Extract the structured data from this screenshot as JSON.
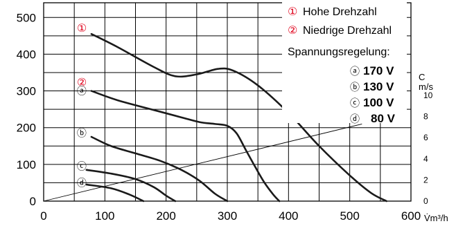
{
  "colors": {
    "accent_red": "#e0001a",
    "curve": "#1a1a1a",
    "grid": "#000000"
  },
  "chart_data": {
    "type": "line",
    "x_unit_label": "V̇m³/h",
    "xlim": [
      0,
      600
    ],
    "ylim": [
      0,
      540
    ],
    "x_ticks": [
      0,
      100,
      200,
      300,
      400,
      500,
      600
    ],
    "y_ticks": [
      0,
      100,
      200,
      300,
      400,
      500
    ],
    "right_axis": {
      "title": "C",
      "unit": "m/s",
      "ticks": [
        0,
        2,
        4,
        6,
        8,
        10
      ]
    },
    "grid": true,
    "legend": {
      "placement": "top-right",
      "items": [
        {
          "symbol": "①",
          "label": "Hohe Drehzahl"
        },
        {
          "symbol": "②",
          "label": "Niedrige Drehzahl"
        }
      ],
      "voltage_title": "Spannungsregelung:",
      "voltages": [
        {
          "symbol": "ⓐ",
          "label": "170 V"
        },
        {
          "symbol": "ⓑ",
          "label": "130 V"
        },
        {
          "symbol": "ⓒ",
          "label": "100 V"
        },
        {
          "symbol": "ⓓ",
          "label": "80 V"
        }
      ]
    },
    "series": [
      {
        "marker": "①",
        "x": [
          78,
          120,
          180,
          215,
          250,
          285,
          310,
          350,
          400,
          450,
          500,
          535,
          560
        ],
        "y": [
          455,
          420,
          365,
          340,
          345,
          360,
          355,
          315,
          240,
          150,
          70,
          22,
          0
        ]
      },
      {
        "marker": "ⓐ",
        "x": [
          78,
          120,
          180,
          225,
          255,
          280,
          300,
          315,
          330,
          345,
          360,
          375,
          385
        ],
        "y": [
          300,
          275,
          248,
          228,
          215,
          210,
          205,
          185,
          140,
          95,
          52,
          18,
          0
        ]
      },
      {
        "marker": "ⓑ",
        "x": [
          78,
          110,
          150,
          190,
          225,
          255,
          280,
          300
        ],
        "y": [
          175,
          150,
          130,
          110,
          85,
          55,
          20,
          0
        ]
      },
      {
        "marker": "ⓒ",
        "x": [
          70,
          110,
          150,
          180,
          200,
          215
        ],
        "y": [
          85,
          75,
          60,
          38,
          15,
          0
        ]
      },
      {
        "marker": "ⓓ",
        "x": [
          70,
          110,
          140,
          163
        ],
        "y": [
          45,
          35,
          18,
          0
        ]
      }
    ],
    "reference_line": {
      "x": [
        0,
        520
      ],
      "y": [
        0,
        210
      ]
    },
    "series_markers": [
      {
        "symbol": "①",
        "x": 70,
        "y": 470,
        "color": "red"
      },
      {
        "symbol": "②",
        "x": 70,
        "y": 323,
        "color": "red"
      },
      {
        "symbol": "ⓐ",
        "x": 70,
        "y": 300,
        "color": "black"
      },
      {
        "symbol": "ⓑ",
        "x": 70,
        "y": 185,
        "color": "black"
      },
      {
        "symbol": "ⓒ",
        "x": 70,
        "y": 95,
        "color": "black"
      },
      {
        "symbol": "ⓓ",
        "x": 70,
        "y": 50,
        "color": "black"
      }
    ]
  }
}
